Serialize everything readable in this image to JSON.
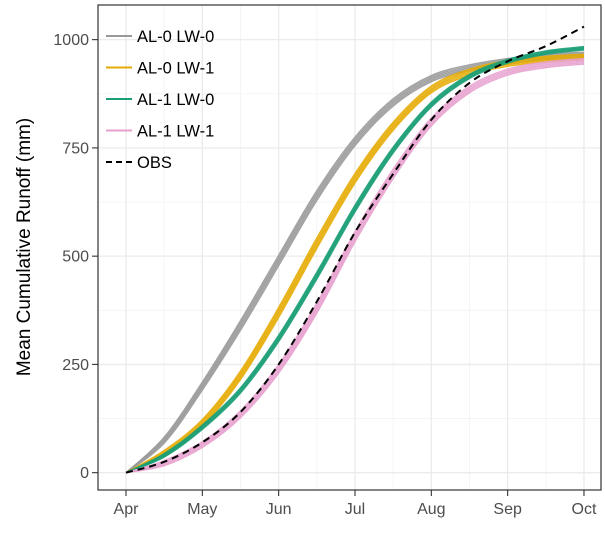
{
  "chart_data": {
    "type": "line",
    "title": "",
    "xlabel": "",
    "ylabel": "Mean Cumulative Runoff (mm)",
    "x_ticks": [
      "Apr",
      "May",
      "Jun",
      "Jul",
      "Aug",
      "Sep",
      "Oct"
    ],
    "xlim": [
      0,
      6
    ],
    "ylim": [
      -40,
      1080
    ],
    "y_ticks": [
      0,
      250,
      500,
      750,
      1000
    ],
    "grid": true,
    "legend_position": "top-left",
    "legend": [
      {
        "name": "AL-0 LW-0",
        "color": "#999999",
        "dash": "solid"
      },
      {
        "name": "AL-0 LW-1",
        "color": "#E6AB02",
        "dash": "solid"
      },
      {
        "name": "AL-1 LW-0",
        "color": "#1B9E77",
        "dash": "solid"
      },
      {
        "name": "AL-1 LW-1",
        "color": "#E7A0CE",
        "dash": "solid"
      },
      {
        "name": "OBS",
        "color": "#000000",
        "dash": "dashed"
      }
    ],
    "series": [
      {
        "name": "AL-0 LW-0",
        "color": "#999999",
        "values": [
          [
            0,
            0
          ],
          [
            0.5,
            75
          ],
          [
            1,
            200
          ],
          [
            1.5,
            340
          ],
          [
            2,
            490
          ],
          [
            2.5,
            640
          ],
          [
            3,
            765
          ],
          [
            3.5,
            855
          ],
          [
            4,
            910
          ],
          [
            4.5,
            935
          ],
          [
            5,
            950
          ],
          [
            5.5,
            960
          ],
          [
            6,
            965
          ]
        ],
        "offsets": [
          -12,
          -6,
          0,
          6,
          12
        ]
      },
      {
        "name": "AL-0 LW-1",
        "color": "#E6AB02",
        "values": [
          [
            0,
            0
          ],
          [
            0.5,
            45
          ],
          [
            1,
            115
          ],
          [
            1.5,
            225
          ],
          [
            2,
            370
          ],
          [
            2.5,
            530
          ],
          [
            3,
            680
          ],
          [
            3.5,
            800
          ],
          [
            4,
            885
          ],
          [
            4.5,
            925
          ],
          [
            5,
            945
          ],
          [
            5.5,
            955
          ],
          [
            6,
            960
          ]
        ],
        "offsets": [
          -12,
          -6,
          0,
          6,
          12
        ]
      },
      {
        "name": "AL-1 LW-0",
        "color": "#1B9E77",
        "values": [
          [
            0,
            0
          ],
          [
            0.5,
            40
          ],
          [
            1,
            105
          ],
          [
            1.5,
            190
          ],
          [
            2,
            310
          ],
          [
            2.5,
            455
          ],
          [
            3,
            610
          ],
          [
            3.5,
            745
          ],
          [
            4,
            850
          ],
          [
            4.5,
            915
          ],
          [
            5,
            950
          ],
          [
            5.5,
            970
          ],
          [
            6,
            980
          ]
        ],
        "offsets": [
          -8,
          -4,
          0,
          4,
          8
        ]
      },
      {
        "name": "AL-1 LW-1",
        "color": "#E7A0CE",
        "values": [
          [
            0,
            0
          ],
          [
            0.5,
            22
          ],
          [
            1,
            65
          ],
          [
            1.5,
            135
          ],
          [
            2,
            240
          ],
          [
            2.5,
            380
          ],
          [
            3,
            545
          ],
          [
            3.5,
            690
          ],
          [
            4,
            810
          ],
          [
            4.5,
            885
          ],
          [
            5,
            925
          ],
          [
            5.5,
            942
          ],
          [
            6,
            950
          ]
        ],
        "offsets": [
          -12,
          -6,
          0,
          6,
          12
        ]
      },
      {
        "name": "OBS",
        "color": "#000000",
        "dashed": true,
        "values": [
          [
            0,
            0
          ],
          [
            0.5,
            25
          ],
          [
            1,
            70
          ],
          [
            1.5,
            140
          ],
          [
            2,
            250
          ],
          [
            2.5,
            395
          ],
          [
            3,
            555
          ],
          [
            3.5,
            690
          ],
          [
            4,
            815
          ],
          [
            4.5,
            900
          ],
          [
            5,
            950
          ],
          [
            5.5,
            985
          ],
          [
            6,
            1030
          ]
        ]
      }
    ]
  }
}
